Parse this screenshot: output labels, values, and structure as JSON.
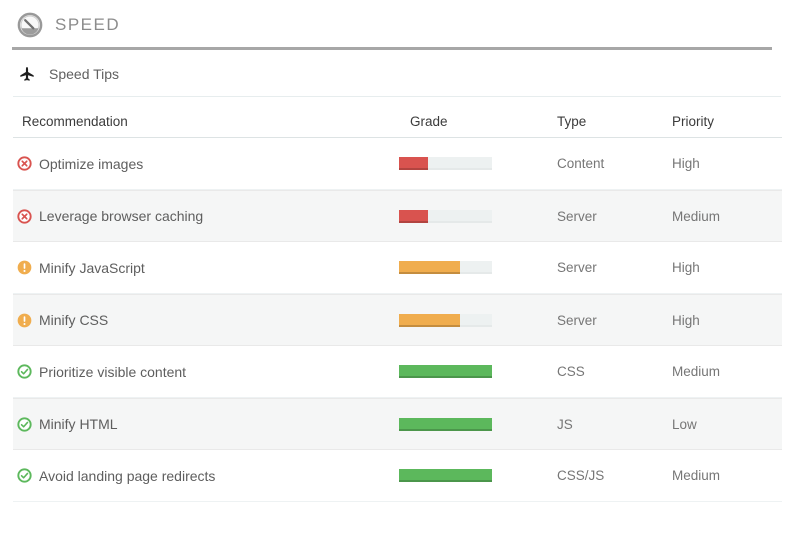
{
  "header": {
    "title": "SPEED",
    "icon": "gauge"
  },
  "tips": {
    "label": "Speed Tips",
    "icon": "plane"
  },
  "colors": {
    "error": "#d9534f",
    "warning": "#f0ad4e",
    "ok": "#5cb85c",
    "track": "#edf1f1",
    "row_stripe": "#f5f6f6"
  },
  "icon_names": {
    "error": "times-circle-icon",
    "warning": "exclamation-circle-icon",
    "ok": "check-circle-icon"
  },
  "table": {
    "columns": [
      "Recommendation",
      "Grade",
      "Type",
      "Priority"
    ],
    "rows": [
      {
        "label": "Optimize images",
        "status": "error",
        "grade_percent": 31,
        "type": "Content",
        "priority": "High"
      },
      {
        "label": "Leverage browser caching",
        "status": "error",
        "grade_percent": 31,
        "type": "Server",
        "priority": "Medium"
      },
      {
        "label": "Minify JavaScript",
        "status": "warning",
        "grade_percent": 66,
        "type": "Server",
        "priority": "High"
      },
      {
        "label": "Minify CSS",
        "status": "warning",
        "grade_percent": 66,
        "type": "Server",
        "priority": "High"
      },
      {
        "label": "Prioritize visible content",
        "status": "ok",
        "grade_percent": 100,
        "type": "CSS",
        "priority": "Medium"
      },
      {
        "label": "Minify HTML",
        "status": "ok",
        "grade_percent": 100,
        "type": "JS",
        "priority": "Low"
      },
      {
        "label": "Avoid landing page redirects",
        "status": "ok",
        "grade_percent": 100,
        "type": "CSS/JS",
        "priority": "Medium"
      }
    ]
  }
}
